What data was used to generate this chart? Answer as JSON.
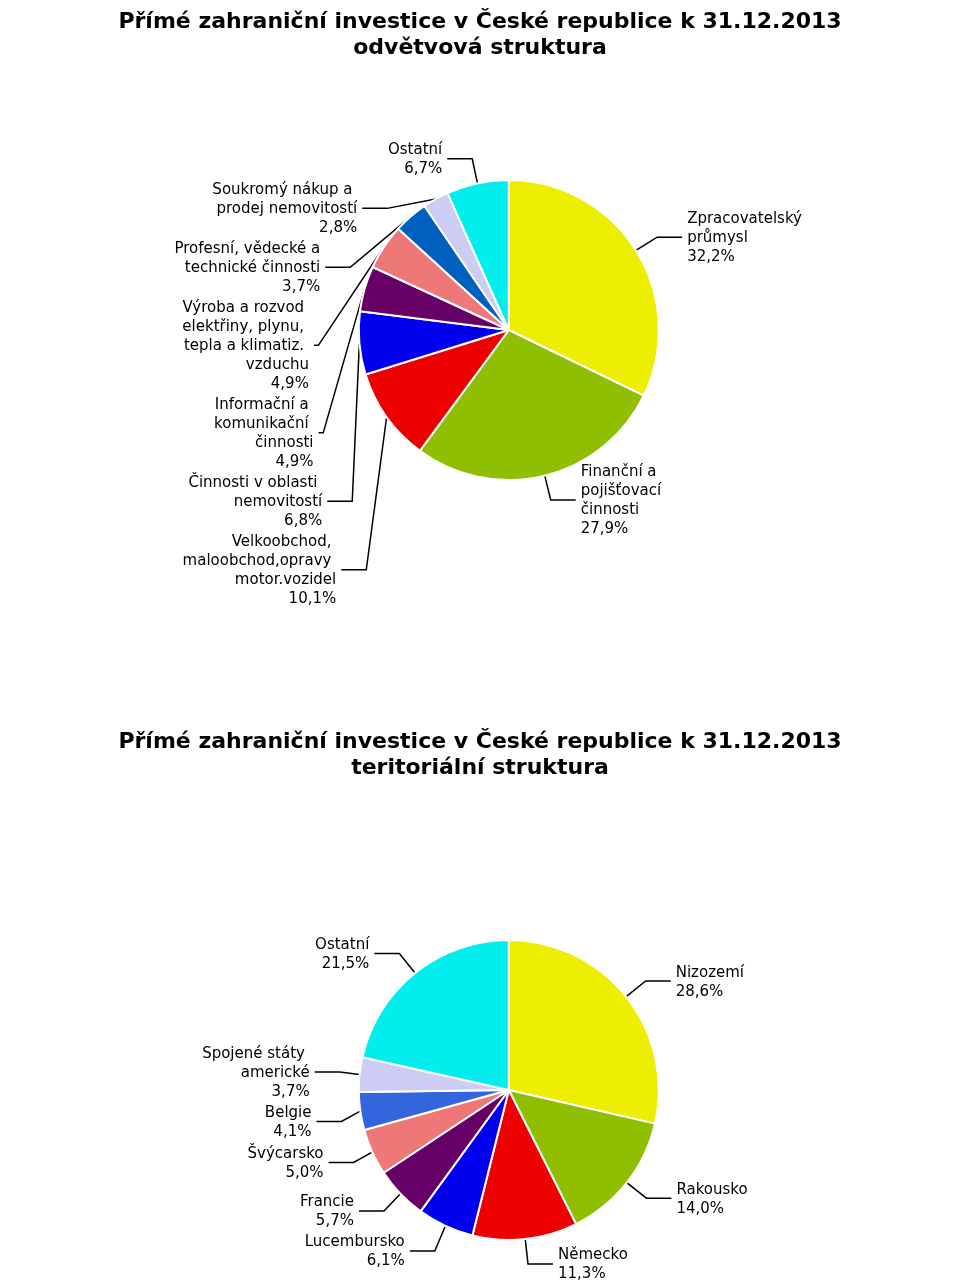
{
  "chart_data": [
    {
      "type": "pie",
      "title": "Přímé zahraniční investice v České republice k 31.12.2013",
      "subtitle": "odvětvová struktura",
      "categories": [
        "Zpracovatelský průmysl",
        "Finanční a pojišťovací činnosti",
        "Velkoobchod, maloobchod,opravy motor.vozidel",
        "Činnosti v oblasti nemovitostí",
        "Informační a komunikační činnosti",
        "Výroba a rozvod elektřiny, plynu, tepla a klimatiz. vzduchu",
        "Profesní, vědecké a technické činnosti",
        "Soukromý nákup a prodej nemovitostí",
        "Ostatní"
      ],
      "values": [
        32.2,
        27.9,
        10.1,
        6.8,
        4.9,
        4.9,
        3.7,
        2.8,
        6.7
      ],
      "value_labels": [
        "32,2%",
        "27,9%",
        "10,1%",
        "6,8%",
        "4,9%",
        "4,9%",
        "3,7%",
        "2,8%",
        "6,7%"
      ],
      "colors": [
        "#eeee00",
        "#8fbf00",
        "#ee0000",
        "#0000ee",
        "#660066",
        "#ee7777",
        "#0060c0",
        "#ccccf5",
        "#00eeee"
      ]
    },
    {
      "type": "pie",
      "title": "Přímé zahraniční investice v České republice k 31.12.2013",
      "subtitle": "teritoriální struktura",
      "categories": [
        "Nizozemí",
        "Rakousko",
        "Německo",
        "Lucembursko",
        "Francie",
        "Švýcarsko",
        "Belgie",
        "Spojené státy americké",
        "Ostatní"
      ],
      "values": [
        28.6,
        14.0,
        11.3,
        6.1,
        5.7,
        5.0,
        4.1,
        3.7,
        21.5
      ],
      "value_labels": [
        "28,6%",
        "14,0%",
        "11,3%",
        "6,1%",
        "5,7%",
        "5,0%",
        "4,1%",
        "3,7%",
        "21,5%"
      ],
      "colors": [
        "#eeee00",
        "#8fbf00",
        "#ee0000",
        "#0000ee",
        "#660066",
        "#ee7777",
        "#3366dd",
        "#ccccf5",
        "#00eeee"
      ]
    }
  ]
}
